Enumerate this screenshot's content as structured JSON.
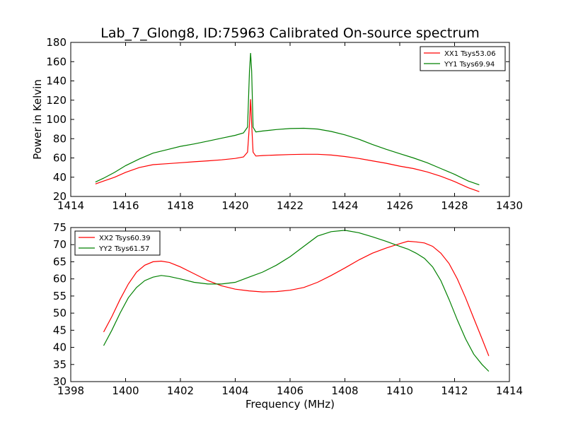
{
  "title": "Lab_7_Glong8, ID:75963 Calibrated On-source spectrum",
  "chart_data": [
    {
      "type": "line",
      "title": "Lab_7_Glong8, ID:75963 Calibrated On-source spectrum",
      "xlabel": "",
      "ylabel": "Power in Kelvin",
      "xlim": [
        1414,
        1430
      ],
      "ylim": [
        20,
        180
      ],
      "xticks": [
        "1414",
        "1416",
        "1418",
        "1420",
        "1422",
        "1424",
        "1426",
        "1428",
        "1430"
      ],
      "yticks": [
        "20",
        "40",
        "60",
        "80",
        "100",
        "120",
        "140",
        "160",
        "180"
      ],
      "grid": false,
      "legend_position": "top-right",
      "series": [
        {
          "name": "XX1 Tsys53.06",
          "color": "#ff0000",
          "x": [
            1414.9,
            1415.2,
            1415.6,
            1416.0,
            1416.5,
            1417.0,
            1417.5,
            1418.0,
            1418.5,
            1419.0,
            1419.5,
            1420.0,
            1420.3,
            1420.45,
            1420.52,
            1420.56,
            1420.6,
            1420.65,
            1420.75,
            1421.0,
            1421.5,
            1422.0,
            1422.5,
            1423.0,
            1423.5,
            1424.0,
            1424.5,
            1425.0,
            1425.5,
            1426.0,
            1426.5,
            1427.0,
            1427.5,
            1428.0,
            1428.5,
            1428.9
          ],
          "y": [
            33,
            36,
            40,
            45,
            50,
            53,
            54,
            55,
            56,
            57,
            58,
            59.5,
            61,
            66,
            95,
            121,
            95,
            66,
            62,
            62.5,
            63,
            63.5,
            63.8,
            63.8,
            63,
            61.5,
            59.5,
            57,
            54.5,
            51.5,
            49,
            45.5,
            41,
            35.5,
            29,
            25
          ]
        },
        {
          "name": "YY1 Tsys69.94",
          "color": "#008000",
          "x": [
            1414.9,
            1415.2,
            1415.6,
            1416.0,
            1416.5,
            1417.0,
            1417.5,
            1418.0,
            1418.5,
            1419.0,
            1419.5,
            1420.0,
            1420.3,
            1420.45,
            1420.52,
            1420.56,
            1420.6,
            1420.65,
            1420.75,
            1421.0,
            1421.5,
            1422.0,
            1422.5,
            1423.0,
            1423.5,
            1424.0,
            1424.5,
            1425.0,
            1425.5,
            1426.0,
            1426.5,
            1427.0,
            1427.5,
            1428.0,
            1428.5,
            1428.9
          ],
          "y": [
            35,
            39,
            45,
            52,
            59,
            65,
            68.5,
            72,
            74.5,
            77.5,
            80.5,
            83.5,
            86,
            92,
            150,
            169,
            150,
            92,
            87,
            88,
            89.5,
            90.5,
            90.8,
            90,
            87.5,
            84,
            79.5,
            74,
            69,
            64.5,
            60,
            55,
            49,
            43,
            36,
            32
          ]
        }
      ]
    },
    {
      "type": "line",
      "title": "",
      "xlabel": "Frequency (MHz)",
      "ylabel": "",
      "xlim": [
        1398,
        1414
      ],
      "ylim": [
        30,
        75
      ],
      "xticks": [
        "1398",
        "1400",
        "1402",
        "1404",
        "1406",
        "1408",
        "1410",
        "1412",
        "1414"
      ],
      "yticks": [
        "30",
        "35",
        "40",
        "45",
        "50",
        "55",
        "60",
        "65",
        "70",
        "75"
      ],
      "grid": false,
      "legend_position": "top-left",
      "series": [
        {
          "name": "XX2 Tsys60.39",
          "color": "#ff0000",
          "x": [
            1399.2,
            1399.5,
            1399.8,
            1400.1,
            1400.4,
            1400.7,
            1401.0,
            1401.3,
            1401.6,
            1402.0,
            1402.5,
            1403.0,
            1403.5,
            1404.0,
            1404.5,
            1405.0,
            1405.5,
            1406.0,
            1406.5,
            1407.0,
            1407.5,
            1408.0,
            1408.5,
            1409.0,
            1409.5,
            1410.0,
            1410.3,
            1410.6,
            1410.9,
            1411.2,
            1411.5,
            1411.8,
            1412.1,
            1412.4,
            1412.7,
            1413.0,
            1413.25
          ],
          "y": [
            44.5,
            49,
            54,
            58.5,
            62,
            64,
            65,
            65.2,
            64.8,
            63.5,
            61.5,
            59.5,
            58,
            57,
            56.5,
            56.2,
            56.3,
            56.7,
            57.5,
            59,
            61,
            63.2,
            65.5,
            67.5,
            69,
            70.3,
            71,
            70.8,
            70.5,
            69.5,
            67.5,
            64.5,
            60,
            54.5,
            48.5,
            42.5,
            37.5
          ]
        },
        {
          "name": "YY2 Tsys61.57",
          "color": "#008000",
          "x": [
            1399.2,
            1399.5,
            1399.8,
            1400.1,
            1400.4,
            1400.7,
            1401.0,
            1401.3,
            1401.6,
            1402.0,
            1402.5,
            1403.0,
            1403.5,
            1404.0,
            1404.5,
            1405.0,
            1405.5,
            1406.0,
            1406.5,
            1407.0,
            1407.5,
            1408.0,
            1408.5,
            1409.0,
            1409.5,
            1410.0,
            1410.3,
            1410.6,
            1410.9,
            1411.2,
            1411.5,
            1411.8,
            1412.1,
            1412.4,
            1412.7,
            1413.0,
            1413.25
          ],
          "y": [
            40.5,
            45,
            50,
            54.5,
            57.5,
            59.5,
            60.5,
            61,
            60.7,
            60,
            59,
            58.5,
            58.5,
            59,
            60.5,
            62,
            64,
            66.5,
            69.5,
            72.5,
            73.8,
            74.2,
            73.5,
            72.3,
            71,
            69.5,
            68.7,
            67.5,
            66,
            63.5,
            59.5,
            54,
            48,
            42.5,
            38,
            35,
            33
          ]
        }
      ]
    }
  ]
}
